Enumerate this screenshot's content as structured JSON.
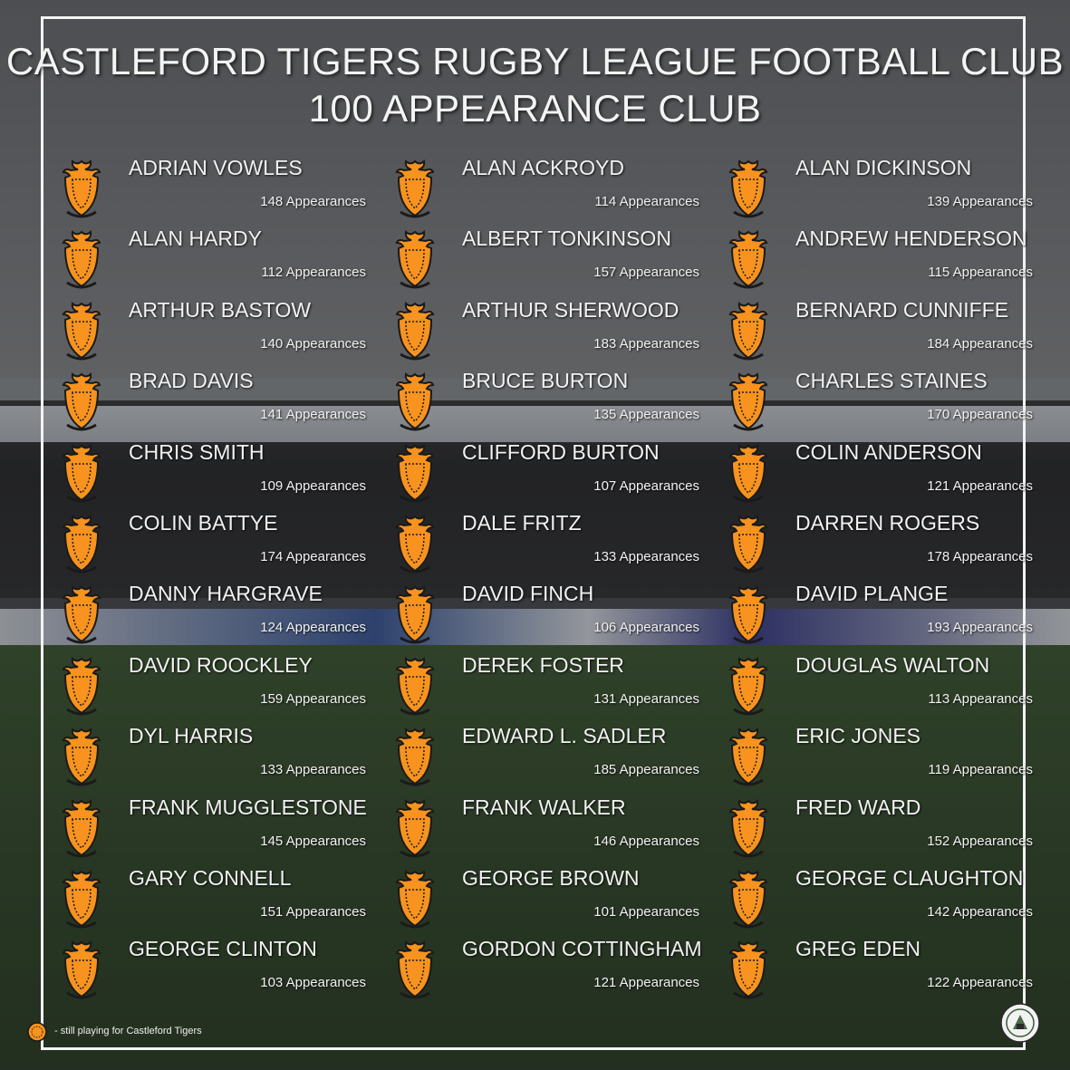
{
  "header": {
    "title_line1": "CASTLEFORD TIGERS RUGBY LEAGUE FOOTBALL CLUB",
    "title_line2": "100 APPEARANCE CLUB"
  },
  "colors": {
    "crest_orange": "#f7931e",
    "crest_dark": "#1a1a1a",
    "text": "#f2f2f2"
  },
  "icons": {
    "crest": "castleford-tigers-crest-icon",
    "badge": "club-roundel-badge-icon"
  },
  "players": [
    {
      "name": "ADRIAN VOWLES",
      "apps": "148 Appearances"
    },
    {
      "name": "ALAN ACKROYD",
      "apps": "114 Appearances"
    },
    {
      "name": "ALAN DICKINSON",
      "apps": "139 Appearances"
    },
    {
      "name": "ALAN HARDY",
      "apps": "112 Appearances"
    },
    {
      "name": "ALBERT TONKINSON",
      "apps": "157 Appearances"
    },
    {
      "name": "ANDREW HENDERSON",
      "apps": "115 Appearances"
    },
    {
      "name": "ARTHUR BASTOW",
      "apps": "140 Appearances"
    },
    {
      "name": "ARTHUR SHERWOOD",
      "apps": "183 Appearances"
    },
    {
      "name": "BERNARD CUNNIFFE",
      "apps": "184 Appearances"
    },
    {
      "name": "BRAD DAVIS",
      "apps": "141 Appearances"
    },
    {
      "name": "BRUCE BURTON",
      "apps": "135 Appearances"
    },
    {
      "name": "CHARLES STAINES",
      "apps": "170 Appearances"
    },
    {
      "name": "CHRIS SMITH",
      "apps": "109 Appearances"
    },
    {
      "name": "CLIFFORD BURTON",
      "apps": "107 Appearances"
    },
    {
      "name": "COLIN ANDERSON",
      "apps": "121 Appearances"
    },
    {
      "name": "COLIN BATTYE",
      "apps": "174 Appearances"
    },
    {
      "name": "DALE FRITZ",
      "apps": "133 Appearances"
    },
    {
      "name": "DARREN ROGERS",
      "apps": "178 Appearances"
    },
    {
      "name": "DANNY HARGRAVE",
      "apps": "124 Appearances"
    },
    {
      "name": "DAVID FINCH",
      "apps": "106 Appearances"
    },
    {
      "name": "DAVID PLANGE",
      "apps": "193 Appearances"
    },
    {
      "name": "DAVID ROOCKLEY",
      "apps": "159 Appearances"
    },
    {
      "name": "DEREK FOSTER",
      "apps": "131 Appearances"
    },
    {
      "name": "DOUGLAS WALTON",
      "apps": "113 Appearances"
    },
    {
      "name": "DYL HARRIS",
      "apps": "133 Appearances"
    },
    {
      "name": "EDWARD L. SADLER",
      "apps": "185 Appearances"
    },
    {
      "name": "ERIC JONES",
      "apps": "119 Appearances"
    },
    {
      "name": "FRANK MUGGLESTONE",
      "apps": "145 Appearances"
    },
    {
      "name": "FRANK WALKER",
      "apps": "146 Appearances"
    },
    {
      "name": "FRED WARD",
      "apps": "152 Appearances"
    },
    {
      "name": "GARY CONNELL",
      "apps": "151 Appearances"
    },
    {
      "name": "GEORGE BROWN",
      "apps": "101 Appearances"
    },
    {
      "name": "GEORGE CLAUGHTON",
      "apps": "142 Appearances"
    },
    {
      "name": "GEORGE CLINTON",
      "apps": "103 Appearances"
    },
    {
      "name": "GORDON COTTINGHAM",
      "apps": "121 Appearances"
    },
    {
      "name": "GREG EDEN",
      "apps": "122 Appearances"
    }
  ],
  "legend": {
    "text": "- still playing for Castleford Tigers"
  }
}
